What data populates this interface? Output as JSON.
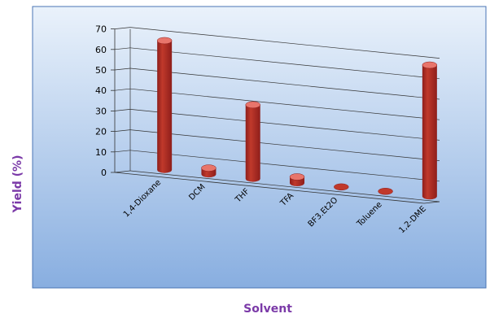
{
  "chart_data": {
    "type": "bar",
    "style": "3d-cylinder",
    "title": "",
    "xlabel": "Solvent",
    "ylabel": "Yield (%)",
    "categories": [
      "1,4-Dioxane",
      "DCM",
      "THF",
      "TFA",
      "BF3.Et2O",
      "Toluene",
      "1,2-DME"
    ],
    "values": [
      63,
      3,
      36,
      3,
      0,
      0,
      64
    ],
    "ylim": [
      0,
      70
    ],
    "yticks": [
      "0",
      "10",
      "20",
      "30",
      "40",
      "50",
      "60",
      "70"
    ],
    "grid": true,
    "legend": "none",
    "colors": {
      "bar": "#c0392b",
      "bar_dark": "#8e1e1b",
      "bar_light": "#e8756b",
      "plot_bg_top": "#eaf2fb",
      "plot_bg_bottom": "#88aee0",
      "plot_border": "#4a74b5",
      "gridline": "#333333",
      "axis_title": "#7b3aa8"
    }
  }
}
